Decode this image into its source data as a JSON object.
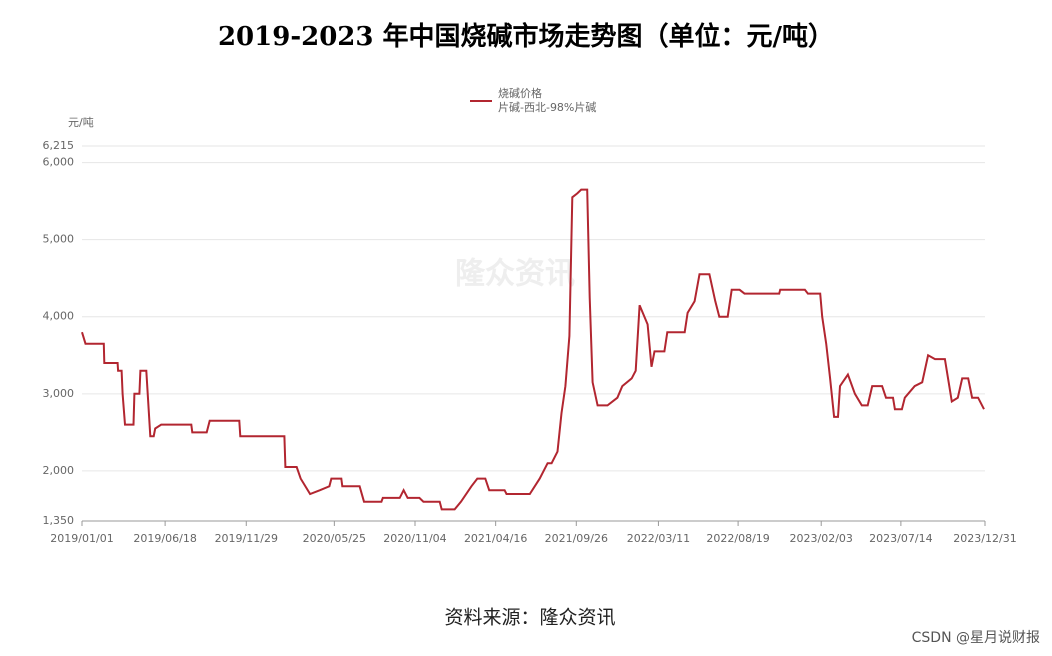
{
  "chart_data": {
    "type": "line",
    "title": "2019-2023 年中国烧碱市场走势图（单位：元/吨）",
    "y_label": "元/吨",
    "legend_title": "烧碱价格",
    "watermark": "隆众资讯",
    "source": "资料来源：隆众资讯",
    "grid": true,
    "xlim": [
      "2019/01/01",
      "2023/12/31"
    ],
    "xticks": [
      "2019/01/01",
      "2019/06/18",
      "2019/11/29",
      "2020/05/25",
      "2020/11/04",
      "2021/04/16",
      "2021/09/26",
      "2022/03/11",
      "2022/08/19",
      "2023/02/03",
      "2023/07/14",
      "2023/12/31"
    ],
    "ylim": [
      1350,
      6215
    ],
    "yticks": [
      {
        "value": 1350,
        "label": "1,350"
      },
      {
        "value": 2000,
        "label": "2,000"
      },
      {
        "value": 3000,
        "label": "3,000"
      },
      {
        "value": 4000,
        "label": "4,000"
      },
      {
        "value": 5000,
        "label": "5,000"
      },
      {
        "value": 6000,
        "label": "6,000"
      },
      {
        "value": 6215,
        "label": "6,215"
      }
    ],
    "x": [
      "2019/01/01",
      "2019/01/08",
      "2019/02/14",
      "2019/02/15",
      "2019/03/14",
      "2019/03/15",
      "2019/03/22",
      "2019/03/24",
      "2019/03/29",
      "2019/04/15",
      "2019/04/17",
      "2019/04/27",
      "2019/04/29",
      "2019/05/11",
      "2019/05/19",
      "2019/05/26",
      "2019/05/29",
      "2019/06/10",
      "2019/08/10",
      "2019/08/12",
      "2019/09/10",
      "2019/09/16",
      "2019/11/15",
      "2019/11/17",
      "2020/02/14",
      "2020/02/16",
      "2020/03/10",
      "2020/03/18",
      "2020/04/06",
      "2020/04/26",
      "2020/05/15",
      "2020/05/19",
      "2020/06/08",
      "2020/06/10",
      "2020/07/15",
      "2020/07/24",
      "2020/08/28",
      "2020/08/31",
      "2020/10/04",
      "2020/10/12",
      "2020/10/20",
      "2020/11/13",
      "2020/11/21",
      "2020/12/24",
      "2020/12/28",
      "2021/01/23",
      "2021/02/05",
      "2021/02/26",
      "2021/03/10",
      "2021/03/26",
      "2021/04/03",
      "2021/05/04",
      "2021/05/08",
      "2021/06/04",
      "2021/06/24",
      "2021/07/14",
      "2021/07/30",
      "2021/08/07",
      "2021/08/19",
      "2021/08/27",
      "2021/09/04",
      "2021/09/12",
      "2021/09/18",
      "2021/09/28",
      "2021/10/06",
      "2021/10/18",
      "2021/10/23",
      "2021/10/29",
      "2021/11/08",
      "2021/11/28",
      "2021/12/18",
      "2021/12/28",
      "2022/01/16",
      "2022/01/24",
      "2022/02/01",
      "2022/02/17",
      "2022/02/25",
      "2022/03/03",
      "2022/03/23",
      "2022/03/29",
      "2022/05/03",
      "2022/05/09",
      "2022/05/23",
      "2022/06/02",
      "2022/06/22",
      "2022/07/04",
      "2022/07/12",
      "2022/07/29",
      "2022/08/06",
      "2022/08/22",
      "2022/09/01",
      "2022/11/10",
      "2022/11/12",
      "2023/01/01",
      "2023/01/07",
      "2023/02/01",
      "2023/02/05",
      "2023/02/13",
      "2023/02/21",
      "2023/03/01",
      "2023/03/09",
      "2023/03/13",
      "2023/03/29",
      "2023/04/12",
      "2023/04/26",
      "2023/05/08",
      "2023/05/17",
      "2023/06/06",
      "2023/06/14",
      "2023/06/28",
      "2023/07/02",
      "2023/07/16",
      "2023/07/22",
      "2023/08/11",
      "2023/08/26",
      "2023/09/07",
      "2023/09/21",
      "2023/10/11",
      "2023/10/25",
      "2023/11/06",
      "2023/11/15",
      "2023/11/27",
      "2023/12/05",
      "2023/12/17",
      "2023/12/29"
    ],
    "series": [
      {
        "name": "片碱-西北-98%片碱",
        "color": "#b22630",
        "values": [
          3800,
          3650,
          3650,
          3400,
          3400,
          3300,
          3300,
          3000,
          2600,
          2600,
          3000,
          3000,
          3300,
          3300,
          2450,
          2450,
          2550,
          2600,
          2600,
          2500,
          2500,
          2650,
          2650,
          2450,
          2450,
          2050,
          2050,
          1900,
          1700,
          1750,
          1800,
          1900,
          1900,
          1800,
          1800,
          1600,
          1600,
          1650,
          1650,
          1750,
          1650,
          1650,
          1600,
          1600,
          1500,
          1500,
          1600,
          1800,
          1900,
          1900,
          1750,
          1750,
          1700,
          1700,
          1700,
          1900,
          2100,
          2100,
          2250,
          2750,
          3100,
          3750,
          5550,
          5600,
          5650,
          5650,
          4250,
          3150,
          2850,
          2850,
          2950,
          3100,
          3200,
          3300,
          4150,
          3900,
          3350,
          3550,
          3550,
          3800,
          3800,
          4050,
          4200,
          4550,
          4550,
          4200,
          4000,
          4000,
          4350,
          4350,
          4300,
          4300,
          4350,
          4350,
          4300,
          4300,
          4000,
          3650,
          3200,
          2700,
          2700,
          3100,
          3250,
          3000,
          2850,
          2850,
          3100,
          3100,
          2950,
          2950,
          2800,
          2800,
          2950,
          3100,
          3150,
          3500,
          3450,
          3450,
          2900,
          2950,
          3200,
          3200,
          2950,
          2950,
          2800
        ]
      }
    ]
  },
  "footer_credit": "CSDN @星月说财报"
}
